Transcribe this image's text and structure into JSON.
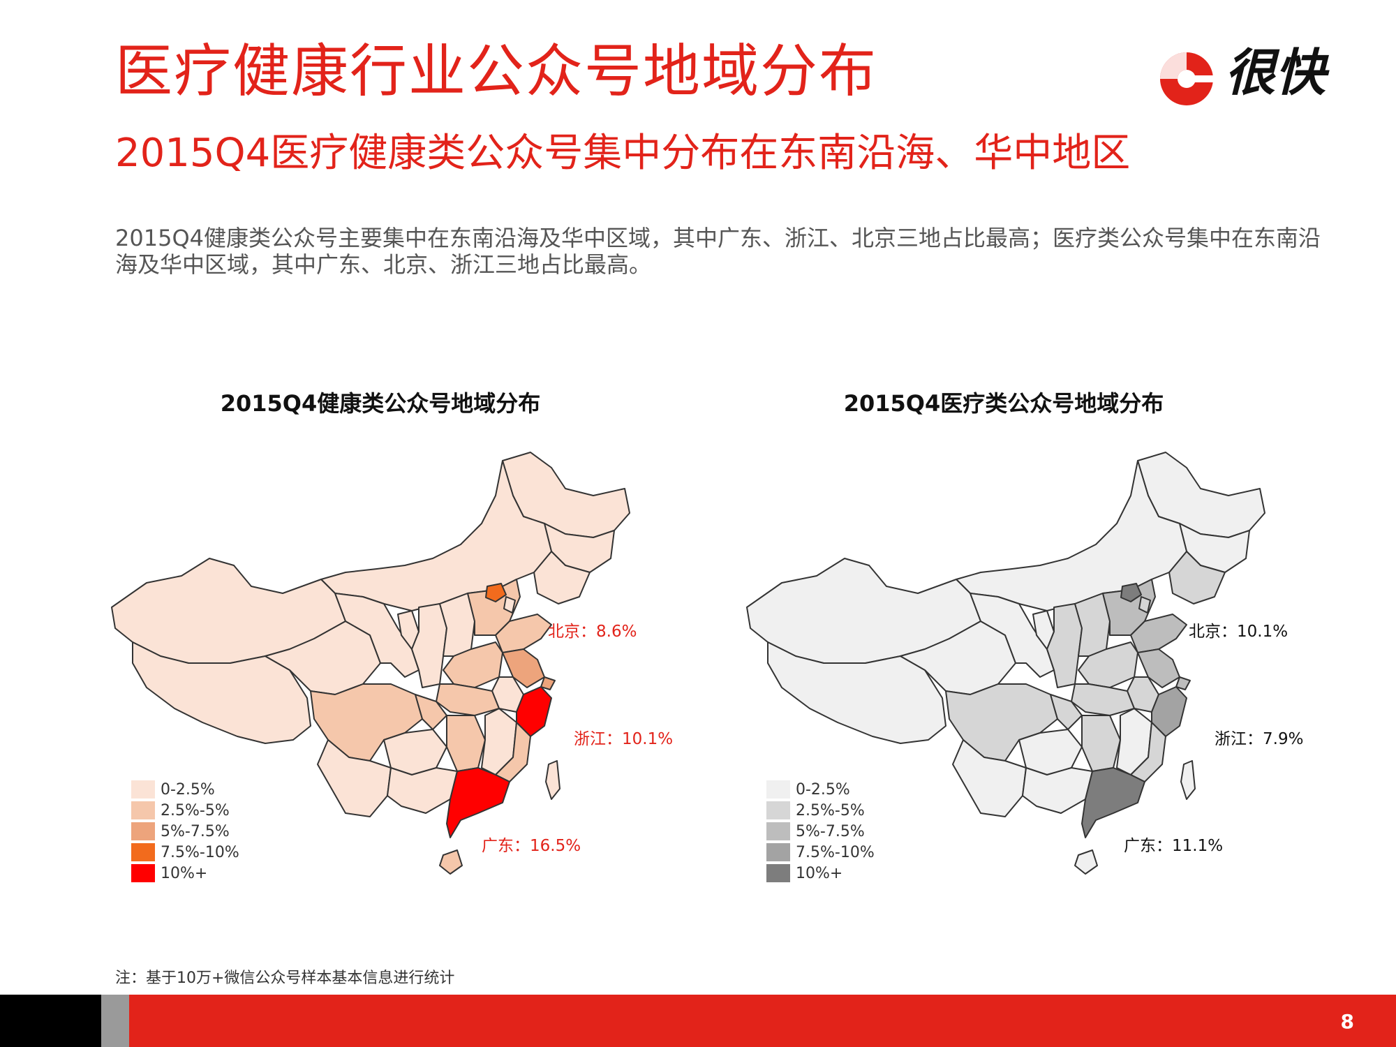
{
  "header": {
    "title": "医疗健康行业公众号地域分布",
    "subtitle": "2015Q4医疗健康类公众号集中分布在东南沿海、华中地区",
    "description": "2015Q4健康类公众号主要集中在东南沿海及华中区域，其中广东、浙江、北京三地占比最高；医疗类公众号集中在东南沿海及华中区域，其中广东、北京、浙江三地占比最高。"
  },
  "logo": {
    "text": "很快",
    "color": "#e2231a"
  },
  "maps": [
    {
      "title": "2015Q4健康类公众号地域分布",
      "legend": [
        {
          "label": "0-2.5%",
          "color": "#fbe3d6"
        },
        {
          "label": "2.5%-5%",
          "color": "#f5c7ab"
        },
        {
          "label": "5%-7.5%",
          "color": "#eda47c"
        },
        {
          "label": "7.5%-10%",
          "color": "#f26b1d"
        },
        {
          "label": "10%+",
          "color": "#ff0000"
        }
      ],
      "callouts": [
        {
          "label": "北京：8.6%",
          "color": "#e2231a"
        },
        {
          "label": "浙江：10.1%",
          "color": "#e2231a"
        },
        {
          "label": "广东：16.5%",
          "color": "#e2231a"
        }
      ]
    },
    {
      "title": "2015Q4医疗类公众号地域分布",
      "legend": [
        {
          "label": "0-2.5%",
          "color": "#f0f0f0"
        },
        {
          "label": "2.5%-5%",
          "color": "#d6d6d6"
        },
        {
          "label": "5%-7.5%",
          "color": "#bdbdbd"
        },
        {
          "label": "7.5%-10%",
          "color": "#a3a3a3"
        },
        {
          "label": "10%+",
          "color": "#7d7d7d"
        }
      ],
      "callouts": [
        {
          "label": "北京：10.1%",
          "color": "#111111"
        },
        {
          "label": "浙江：7.9%",
          "color": "#111111"
        },
        {
          "label": "广东：11.1%",
          "color": "#111111"
        }
      ]
    }
  ],
  "note": "注：基于10万+微信公众号样本基本信息进行统计",
  "footer": {
    "page_number": "8"
  }
}
